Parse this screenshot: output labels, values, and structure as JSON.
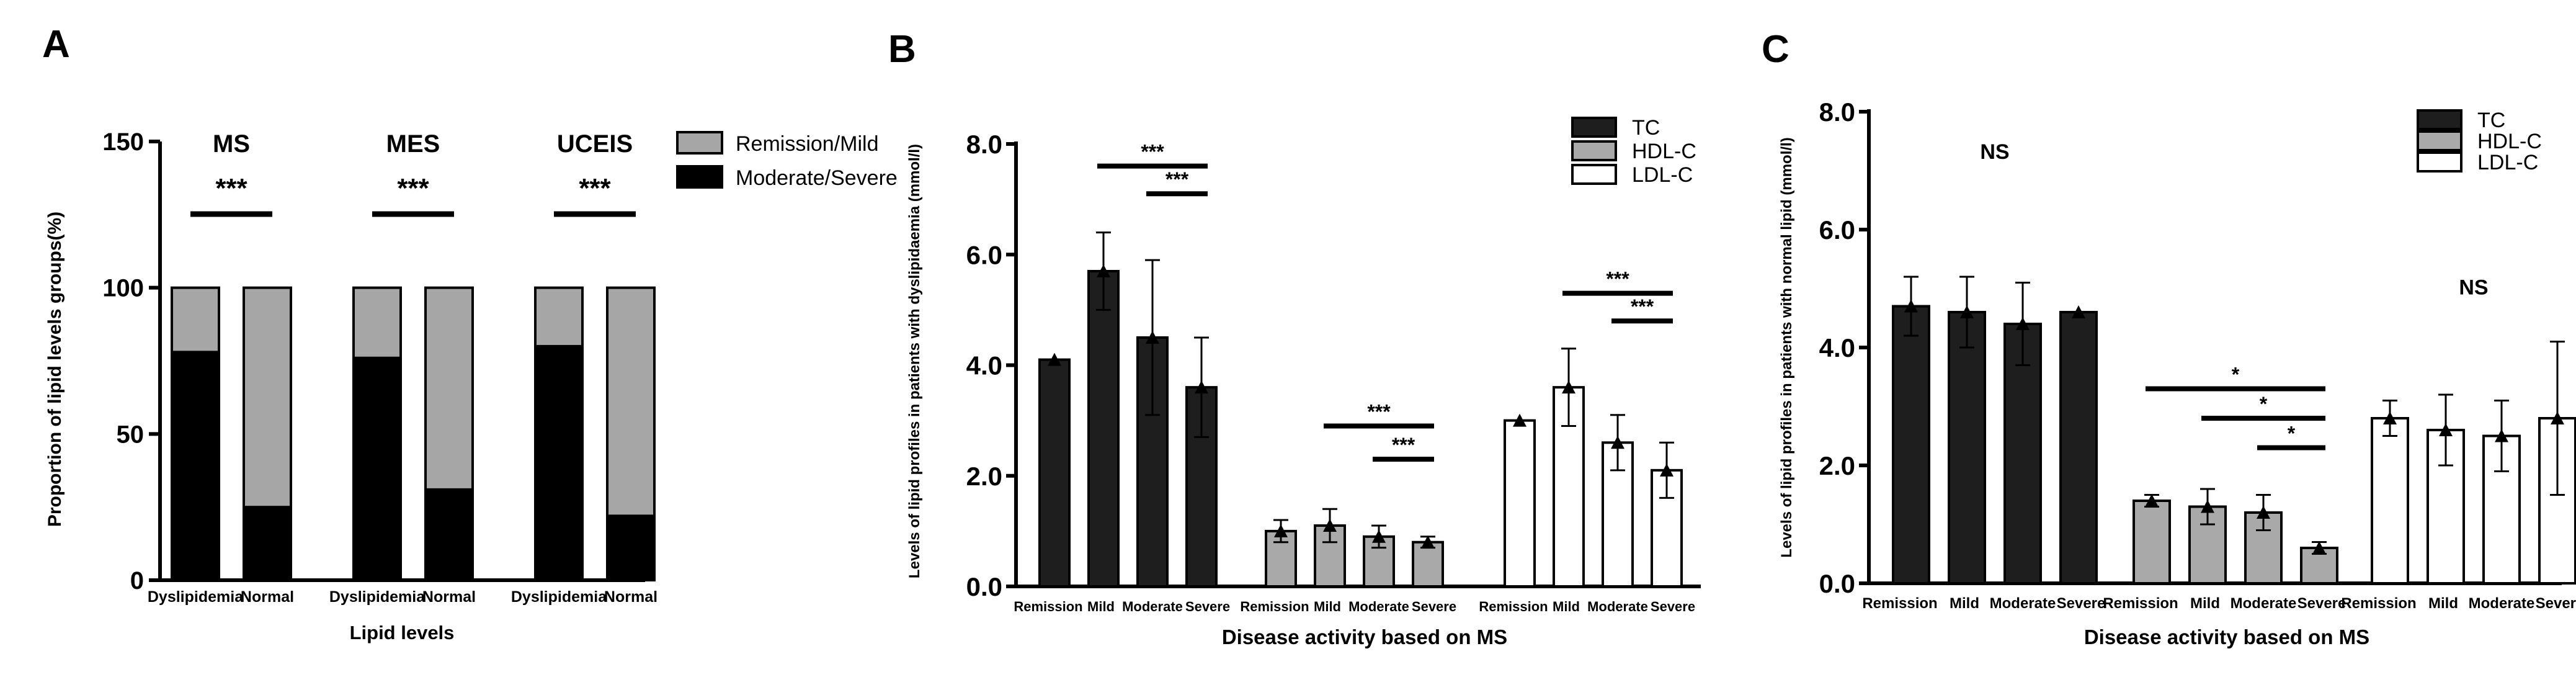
{
  "colors": {
    "tc": "#1e1e1e",
    "hdl": "#a9a9a9",
    "ldl": "#ffffff",
    "moderate_severe": "#000000",
    "remission_mild": "#a6a6a6",
    "ink": "#000000"
  },
  "chart_data": [
    {
      "panel": "A",
      "type": "bar",
      "stacked": true,
      "ylabel": "Proportion of lipid levels groups(%)",
      "xlabel": "Lipid levels",
      "ylim": [
        0,
        150
      ],
      "yticks": [
        "0",
        "50",
        "100",
        "150"
      ],
      "legend": [
        "Remission/Mild",
        "Moderate/Severe"
      ],
      "groups": [
        {
          "label": "MS",
          "sig": "***",
          "categories": [
            "Dyslipidemia",
            "Normal"
          ],
          "moderate_severe": [
            78,
            25
          ],
          "remission_mild": [
            22,
            75
          ]
        },
        {
          "label": "MES",
          "sig": "***",
          "categories": [
            "Dyslipidemia",
            "Normal"
          ],
          "moderate_severe": [
            76,
            31
          ],
          "remission_mild": [
            24,
            69
          ]
        },
        {
          "label": "UCEIS",
          "sig": "***",
          "categories": [
            "Dyslipidemia",
            "Normal"
          ],
          "moderate_severe": [
            80,
            22
          ],
          "remission_mild": [
            20,
            78
          ]
        }
      ]
    },
    {
      "panel": "B",
      "type": "bar",
      "ylabel": "Levels of lipid profiles in patients with dyslipidaemia (mmol/l)",
      "xlabel": "Disease activity based on MS",
      "ylim": [
        0,
        8
      ],
      "yticks": [
        "0.0",
        "2.0",
        "4.0",
        "6.0",
        "8.0"
      ],
      "categories": [
        "Remission",
        "Mild",
        "Moderate",
        "Severe"
      ],
      "legend": [
        "TC",
        "HDL-C",
        "LDL-C"
      ],
      "series": [
        {
          "name": "TC",
          "values": [
            4.1,
            5.7,
            4.5,
            3.6
          ],
          "errors": [
            0.0,
            0.7,
            1.4,
            0.9
          ]
        },
        {
          "name": "HDL-C",
          "values": [
            1.0,
            1.1,
            0.9,
            0.8
          ],
          "errors": [
            0.2,
            0.3,
            0.2,
            0.1
          ]
        },
        {
          "name": "LDL-C",
          "values": [
            3.0,
            3.6,
            2.6,
            2.1
          ],
          "errors": [
            0.0,
            0.7,
            0.5,
            0.5
          ]
        }
      ],
      "significance": [
        {
          "series": 0,
          "from": 1,
          "to": 3,
          "y": 7.6,
          "label": "***"
        },
        {
          "series": 0,
          "from": 2,
          "to": 3,
          "y": 7.1,
          "label": "***"
        },
        {
          "series": 1,
          "from": 1,
          "to": 3,
          "y": 2.9,
          "label": "***"
        },
        {
          "series": 1,
          "from": 2,
          "to": 3,
          "y": 2.3,
          "label": "***"
        },
        {
          "series": 2,
          "from": 1,
          "to": 3,
          "y": 5.3,
          "label": "***"
        },
        {
          "series": 2,
          "from": 2,
          "to": 3,
          "y": 4.8,
          "label": "***"
        }
      ],
      "annotations": []
    },
    {
      "panel": "C",
      "type": "bar",
      "ylabel": "Levels of lipid profiles in patients with normal lipid (mmol/l)",
      "xlabel": "Disease activity based on MS",
      "ylim": [
        0,
        8
      ],
      "yticks": [
        "0.0",
        "2.0",
        "4.0",
        "6.0",
        "8.0"
      ],
      "categories": [
        "Remission",
        "Mild",
        "Moderate",
        "Severe"
      ],
      "legend": [
        "TC",
        "HDL-C",
        "LDL-C"
      ],
      "series": [
        {
          "name": "TC",
          "values": [
            4.7,
            4.6,
            4.4,
            4.6
          ],
          "errors": [
            0.5,
            0.6,
            0.7,
            0.0
          ]
        },
        {
          "name": "HDL-C",
          "values": [
            1.4,
            1.3,
            1.2,
            0.6
          ],
          "errors": [
            0.1,
            0.3,
            0.3,
            0.1
          ]
        },
        {
          "name": "LDL-C",
          "values": [
            2.8,
            2.6,
            2.5,
            2.8
          ],
          "errors": [
            0.3,
            0.6,
            0.6,
            1.3
          ]
        }
      ],
      "significance": [
        {
          "series": 1,
          "from": 0,
          "to": 3,
          "y": 3.3,
          "label": "*"
        },
        {
          "series": 1,
          "from": 1,
          "to": 3,
          "y": 2.8,
          "label": "*"
        },
        {
          "series": 1,
          "from": 2,
          "to": 3,
          "y": 2.3,
          "label": "*"
        }
      ],
      "annotations": [
        {
          "text": "NS",
          "series": 0,
          "y": 7.2
        },
        {
          "text": "NS",
          "series": 2,
          "y": 4.9
        }
      ]
    }
  ]
}
